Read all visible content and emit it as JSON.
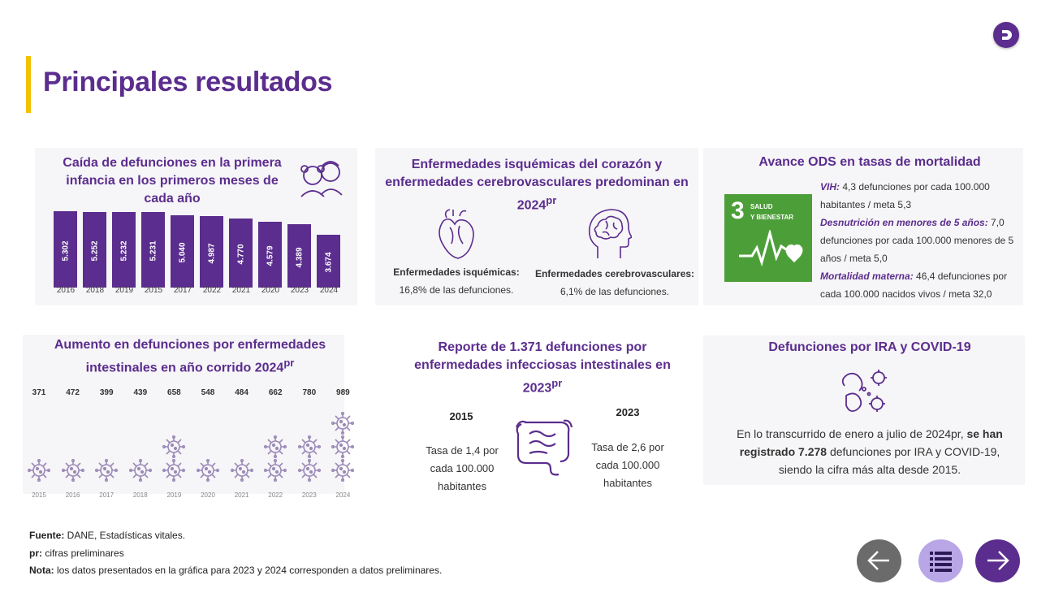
{
  "header": {
    "title": "Principales resultados"
  },
  "card1": {
    "title_lines": [
      "Caída de defunciones en la primera",
      "infancia en los primeros meses de",
      "cada año"
    ],
    "bars": [
      {
        "label": "5.302",
        "year": "2016",
        "value": 5302
      },
      {
        "label": "5.252",
        "year": "2018",
        "value": 5252
      },
      {
        "label": "5.232",
        "year": "2019",
        "value": 5232
      },
      {
        "label": "5.231",
        "year": "2015",
        "value": 5231
      },
      {
        "label": "5.040",
        "year": "2017",
        "value": 5040
      },
      {
        "label": "4.987",
        "year": "2022",
        "value": 4987
      },
      {
        "label": "4.770",
        "year": "2021",
        "value": 4770
      },
      {
        "label": "4.579",
        "year": "2020",
        "value": 4579
      },
      {
        "label": "4.389",
        "year": "2023",
        "value": 4389
      },
      {
        "label": "3.674",
        "year": "2024",
        "value": 3674
      }
    ]
  },
  "card2": {
    "title_lines": [
      "Enfermedades isquémicas del corazón y",
      "enfermedades cerebrovasculares predominan en",
      "2024"
    ],
    "title_sup": "pr",
    "left_label": "Enfermedades isquémicas:",
    "left_value": "16,8% de las defunciones.",
    "right_label": "Enfermedades cerebrovasculares:",
    "right_value": "6,1% de las defunciones."
  },
  "card3": {
    "title": "Avance ODS en tasas de mortalidad",
    "ods_number": "3",
    "ods_line1": "SALUD",
    "ods_line2": "Y BIENESTAR",
    "vih_label": "VIH:",
    "vih_text": " 4,3 defunciones por cada 100.000 habitantes / meta 5,3",
    "desn_label": "Desnutrición en menores de 5 años:",
    "desn_text": " 7,0 defunciones por cada 100.000 menores de 5 años / meta 5,0",
    "mort_label": "Mortalidad materna:",
    "mort_text": " 46,4 defunciones por cada 100.000 nacidos vivos / meta 32,0"
  },
  "card4": {
    "title_line1": "Aumento en defunciones por enfermedades",
    "title_line2": "intestinales en año corrido 2024",
    "title_sup": "pr",
    "columns": [
      {
        "value": "371",
        "year": "2015",
        "n": 371,
        "icons": 1
      },
      {
        "value": "472",
        "year": "2016",
        "n": 472,
        "icons": 1
      },
      {
        "value": "399",
        "year": "2017",
        "n": 399,
        "icons": 1
      },
      {
        "value": "439",
        "year": "2018",
        "n": 439,
        "icons": 1
      },
      {
        "value": "658",
        "year": "2019",
        "n": 658,
        "icons": 2
      },
      {
        "value": "548",
        "year": "2020",
        "n": 548,
        "icons": 1
      },
      {
        "value": "484",
        "year": "2021",
        "n": 484,
        "icons": 1
      },
      {
        "value": "662",
        "year": "2022",
        "n": 662,
        "icons": 2
      },
      {
        "value": "780",
        "year": "2023",
        "n": 780,
        "icons": 2
      },
      {
        "value": "989",
        "year": "2024",
        "n": 989,
        "icons": 3
      }
    ]
  },
  "card5": {
    "title_lines": [
      "Reporte de 1.371 defunciones por",
      "enfermedades infecciosas intestinales en",
      "2023"
    ],
    "title_sup": "pr",
    "left_year": "2015",
    "left_text": [
      "Tasa de 1,4 por",
      "cada 100.000",
      "habitantes"
    ],
    "right_year": "2023",
    "right_text": [
      "Tasa de 2,6  por",
      "cada 100.000",
      "habitantes"
    ]
  },
  "card6": {
    "title": "Defunciones por IRA y COVID-19",
    "text_a": "En lo transcurrido de enero a julio de 2024pr, ",
    "text_b": "se han registrado 7.278",
    "text_c": " defunciones por IRA y COVID-19, siendo la cifra más alta desde 2015."
  },
  "footer": {
    "source_label": "Fuente:",
    "source_text": " DANE, Estadísticas vitales.",
    "pr_label": "pr:",
    "pr_text": " cifras preliminares",
    "note_label": "Nota:",
    "note_text": " los datos presentados en la gráfica para 2023 y 2024 corresponden a datos preliminares."
  },
  "colors": {
    "primary": "#5b2d8e",
    "accent": "#f2c200",
    "ods_green": "#4c9f38",
    "nav_back": "#6b6b6b",
    "nav_menu": "#b9a6e6"
  },
  "icons": [
    "dane-logo-icon",
    "children-icon",
    "heart-icon",
    "brain-icon",
    "virus-icon",
    "intestine-icon",
    "bacteria-icon",
    "arrow-left-icon",
    "list-icon",
    "arrow-right-icon"
  ]
}
